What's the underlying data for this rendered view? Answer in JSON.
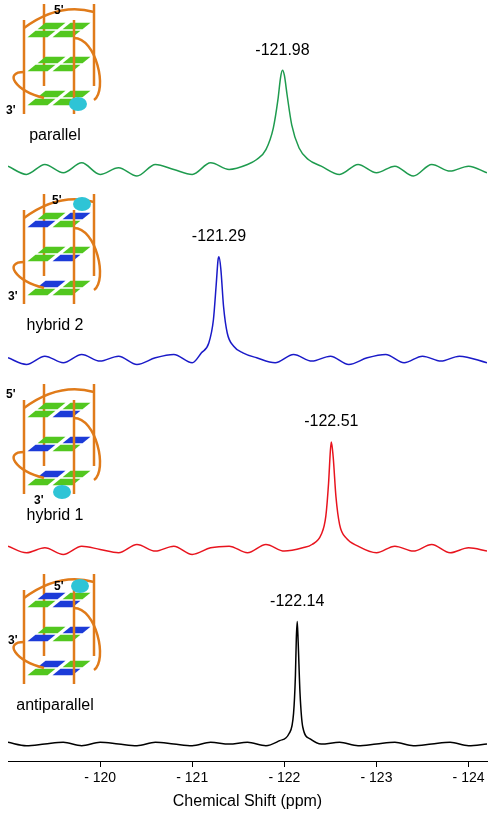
{
  "chart_data": [
    {
      "type": "line",
      "structure": {
        "name": "parallel",
        "ends": [
          "5'",
          "3'"
        ]
      },
      "annotations": [
        {
          "x": -121.98,
          "text": "-121.98"
        }
      ],
      "color": "#1e9b4e",
      "grid": false,
      "tick_labels": false,
      "xlim": [
        -119,
        -124.2
      ],
      "ylim": [
        -0.1,
        1
      ],
      "x": [
        -119.0,
        -119.2,
        -119.4,
        -119.6,
        -119.8,
        -120.0,
        -120.2,
        -120.4,
        -120.6,
        -120.8,
        -121.0,
        -121.2,
        -121.4,
        -121.6,
        -121.7,
        -121.8,
        -121.88,
        -121.93,
        -121.96,
        -121.98,
        -122.0,
        -122.03,
        -122.08,
        -122.16,
        -122.26,
        -122.4,
        -122.6,
        -122.8,
        -123.0,
        -123.2,
        -123.4,
        -123.6,
        -123.8,
        -124.0,
        -124.2
      ],
      "values": [
        0.02,
        -0.03,
        0.03,
        -0.02,
        0.04,
        -0.03,
        0.01,
        -0.04,
        0.03,
        0.0,
        -0.03,
        0.04,
        0.0,
        0.03,
        0.06,
        0.12,
        0.25,
        0.42,
        0.56,
        0.6,
        0.57,
        0.45,
        0.27,
        0.13,
        0.06,
        0.02,
        -0.03,
        0.03,
        -0.02,
        0.02,
        -0.04,
        0.03,
        -0.01,
        0.02,
        -0.02
      ]
    },
    {
      "type": "line",
      "structure": {
        "name": "hybrid 2",
        "ends": [
          "5'",
          "3'"
        ]
      },
      "annotations": [
        {
          "x": -121.29,
          "text": "-121.29"
        }
      ],
      "color": "#1a1ac8",
      "grid": false,
      "tick_labels": false,
      "xlim": [
        -119,
        -124.2
      ],
      "ylim": [
        -0.1,
        1
      ],
      "x": [
        -119.0,
        -119.2,
        -119.4,
        -119.6,
        -119.8,
        -120.0,
        -120.2,
        -120.4,
        -120.6,
        -120.8,
        -121.0,
        -121.1,
        -121.18,
        -121.23,
        -121.26,
        -121.28,
        -121.29,
        -121.31,
        -121.34,
        -121.38,
        -121.45,
        -121.55,
        -121.7,
        -121.9,
        -122.1,
        -122.3,
        -122.5,
        -122.7,
        -122.9,
        -123.1,
        -123.3,
        -123.5,
        -123.7,
        -123.9,
        -124.2
      ],
      "values": [
        0.01,
        -0.03,
        0.02,
        -0.02,
        0.03,
        -0.01,
        0.02,
        -0.03,
        0.01,
        0.03,
        -0.02,
        0.04,
        0.1,
        0.24,
        0.45,
        0.6,
        0.62,
        0.55,
        0.32,
        0.16,
        0.08,
        0.04,
        0.01,
        -0.02,
        0.03,
        -0.01,
        0.02,
        -0.03,
        0.01,
        0.03,
        -0.02,
        0.02,
        -0.01,
        0.02,
        -0.02
      ]
    },
    {
      "type": "line",
      "structure": {
        "name": "hybrid 1",
        "ends": [
          "5'",
          "3'"
        ]
      },
      "annotations": [
        {
          "x": -122.51,
          "text": "-122.51"
        }
      ],
      "color": "#e8141e",
      "grid": false,
      "tick_labels": false,
      "xlim": [
        -119,
        -124.2
      ],
      "ylim": [
        -0.1,
        1
      ],
      "x": [
        -119.0,
        -119.2,
        -119.4,
        -119.6,
        -119.8,
        -120.0,
        -120.2,
        -120.4,
        -120.6,
        -120.8,
        -121.0,
        -121.2,
        -121.4,
        -121.6,
        -121.8,
        -122.0,
        -122.2,
        -122.3,
        -122.4,
        -122.45,
        -122.48,
        -122.5,
        -122.51,
        -122.53,
        -122.56,
        -122.6,
        -122.67,
        -122.8,
        -123.0,
        -123.2,
        -123.4,
        -123.6,
        -123.8,
        -124.0,
        -124.2
      ],
      "values": [
        0.02,
        -0.02,
        0.01,
        -0.03,
        0.02,
        0.0,
        -0.02,
        0.03,
        -0.01,
        0.02,
        -0.03,
        0.01,
        0.02,
        -0.02,
        0.03,
        -0.01,
        0.01,
        0.03,
        0.09,
        0.2,
        0.4,
        0.6,
        0.65,
        0.56,
        0.32,
        0.15,
        0.07,
        0.02,
        -0.02,
        0.02,
        -0.01,
        0.03,
        -0.02,
        0.01,
        -0.01
      ]
    },
    {
      "type": "line",
      "structure": {
        "name": "antiparallel",
        "ends": [
          "5'",
          "3'"
        ]
      },
      "annotations": [
        {
          "x": -122.14,
          "text": "-122.14"
        }
      ],
      "color": "#000000",
      "grid": false,
      "tick_labels": "x",
      "x_label": "Chemical Shift (ppm)",
      "xlim": [
        -119,
        -124.2
      ],
      "ylim": [
        -0.1,
        1
      ],
      "xticks": [
        {
          "value": -120,
          "label": "- 120"
        },
        {
          "value": -121,
          "label": "- 121"
        },
        {
          "value": -122,
          "label": "- 122"
        },
        {
          "value": -123,
          "label": "- 123"
        },
        {
          "value": -124,
          "label": "- 124"
        }
      ],
      "x": [
        -119.0,
        -119.2,
        -119.4,
        -119.6,
        -119.8,
        -120.0,
        -120.2,
        -120.4,
        -120.6,
        -120.8,
        -121.0,
        -121.2,
        -121.4,
        -121.6,
        -121.8,
        -121.95,
        -122.05,
        -122.1,
        -122.12,
        -122.13,
        -122.14,
        -122.15,
        -122.17,
        -122.2,
        -122.28,
        -122.4,
        -122.6,
        -122.8,
        -123.0,
        -123.2,
        -123.4,
        -123.6,
        -123.8,
        -124.0,
        -124.2
      ],
      "values": [
        0.01,
        -0.01,
        0.0,
        0.01,
        -0.01,
        0.01,
        0.0,
        -0.01,
        0.01,
        0.0,
        -0.01,
        0.01,
        0.0,
        0.01,
        -0.01,
        0.02,
        0.06,
        0.18,
        0.4,
        0.62,
        0.72,
        0.6,
        0.3,
        0.1,
        0.03,
        0.0,
        0.01,
        -0.01,
        0.0,
        0.01,
        -0.01,
        0.0,
        0.01,
        -0.01,
        0.0
      ]
    }
  ]
}
